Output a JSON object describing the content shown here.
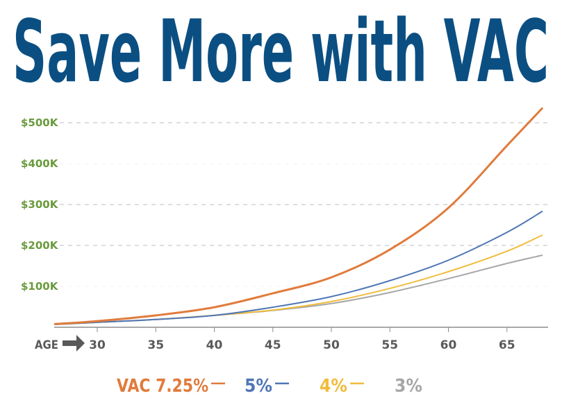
{
  "chart_data": {
    "type": "line",
    "title": "Save More with VAC",
    "xlabel": "AGE",
    "x_ticks": [
      30,
      35,
      40,
      45,
      50,
      55,
      60,
      65
    ],
    "xlim": [
      26.4,
      68
    ],
    "y_ticks": [
      {
        "value": 100000,
        "label": "$100K"
      },
      {
        "value": 200000,
        "label": "$200K"
      },
      {
        "value": 300000,
        "label": "$300K"
      },
      {
        "value": 400000,
        "label": "$400K"
      },
      {
        "value": 500000,
        "label": "$500K"
      }
    ],
    "ylim": [
      0,
      500000
    ],
    "grid": "horizontal dashed",
    "legend_position": "bottom",
    "series": [
      {
        "name": "VAC 7.25%",
        "color": "#e07b3c",
        "width": 3,
        "x": [
          26.4,
          30,
          35,
          40,
          45,
          50,
          55,
          60,
          65,
          68
        ],
        "y": [
          8000,
          15000,
          29000,
          49000,
          83000,
          122000,
          190000,
          292000,
          444000,
          535000
        ]
      },
      {
        "name": "5%",
        "color": "#4f76b5",
        "width": 2,
        "x": [
          26.4,
          30,
          35,
          40,
          45,
          50,
          55,
          60,
          65,
          68
        ],
        "y": [
          7000,
          12000,
          19000,
          29000,
          49000,
          75000,
          114000,
          164000,
          232000,
          283000
        ]
      },
      {
        "name": "4%",
        "color": "#f0bc3c",
        "width": 2,
        "x": [
          26.4,
          30,
          35,
          40,
          45,
          50,
          55,
          60,
          65,
          68
        ],
        "y": [
          7000,
          12000,
          19000,
          29000,
          42000,
          63000,
          95000,
          136000,
          186000,
          225000
        ]
      },
      {
        "name": "3%",
        "color": "#a6a6a6",
        "width": 2,
        "x": [
          26.4,
          30,
          35,
          40,
          45,
          50,
          55,
          60,
          65,
          68
        ],
        "y": [
          7000,
          12000,
          19000,
          29000,
          41000,
          58000,
          85000,
          119000,
          156000,
          176000
        ]
      }
    ]
  }
}
